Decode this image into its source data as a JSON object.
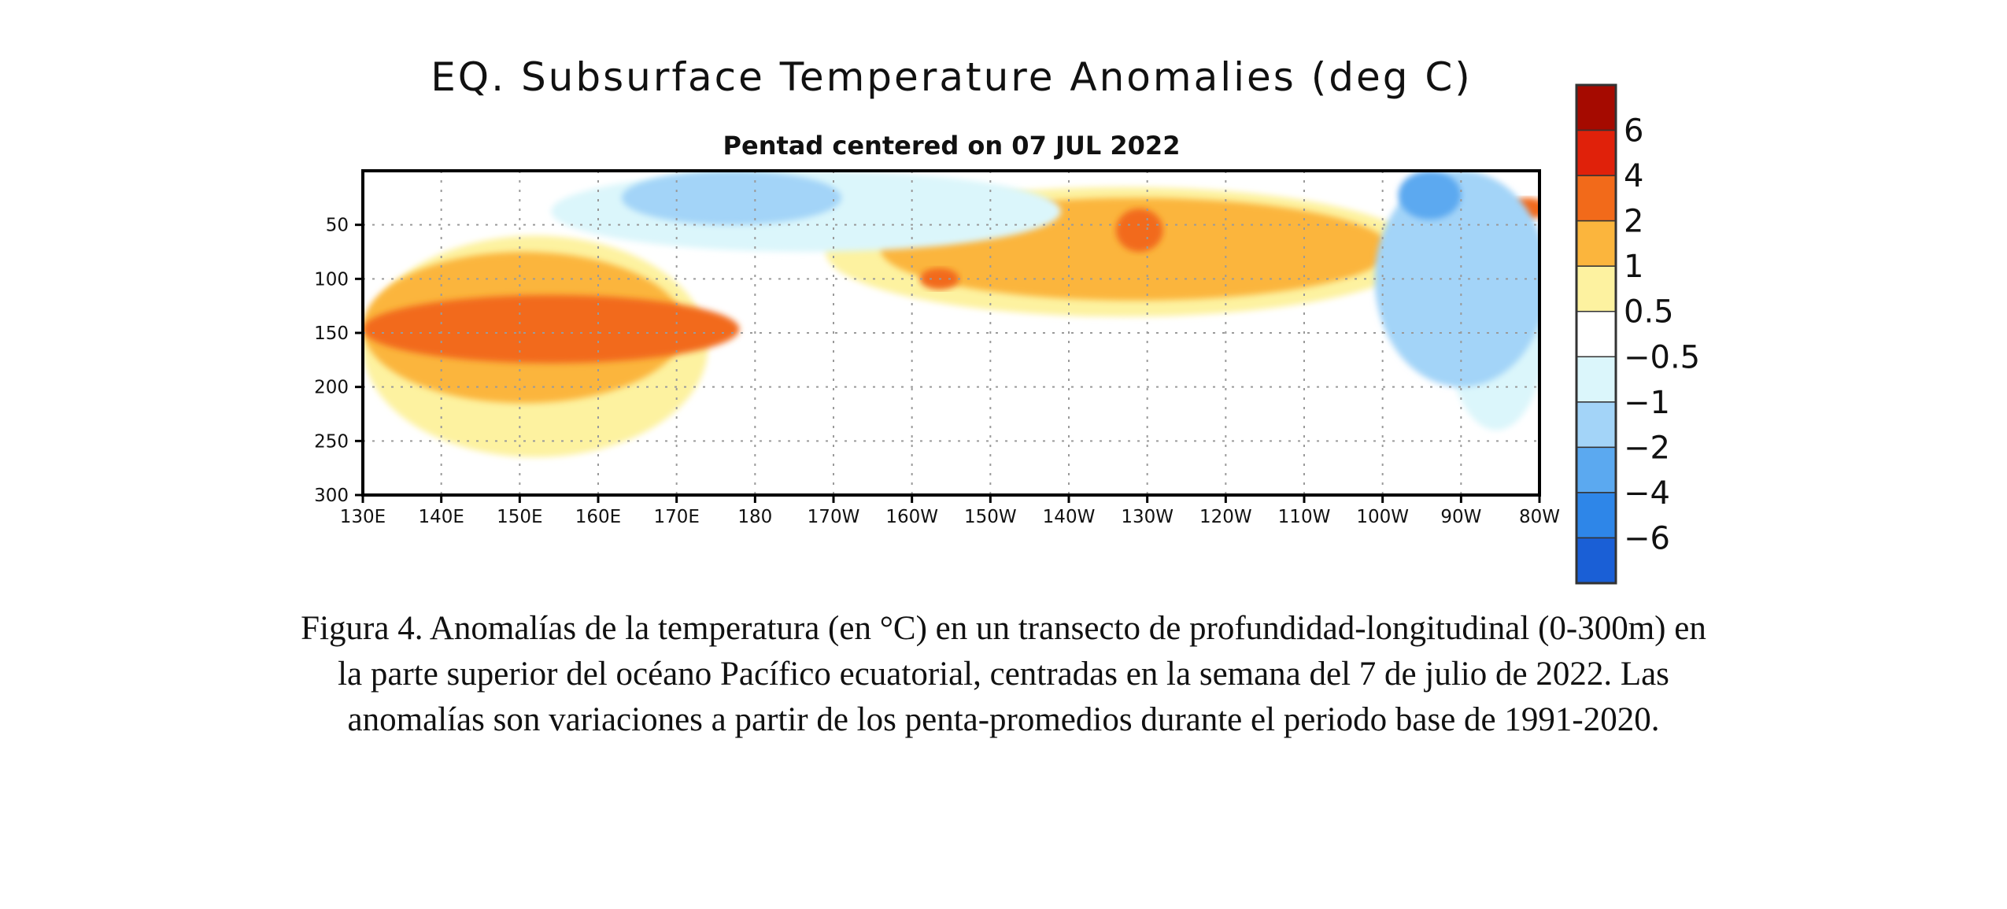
{
  "chart_data": {
    "type": "heatmap",
    "title": "EQ. Subsurface Temperature Anomalies (deg C)",
    "subtitle": "Pentad centered on 07 JUL 2022",
    "xlabel": "",
    "ylabel": "",
    "x_ticks": [
      "130E",
      "140E",
      "150E",
      "160E",
      "170E",
      "180",
      "170W",
      "160W",
      "150W",
      "140W",
      "130W",
      "120W",
      "110W",
      "100W",
      "90W",
      "80W"
    ],
    "x_range_lon": [
      130,
      280
    ],
    "y_ticks": [
      50,
      100,
      150,
      200,
      250,
      300
    ],
    "y_range_depth_m": [
      0,
      300
    ],
    "y_inverted": true,
    "grid": true,
    "legend_placement": "right",
    "colorbar": {
      "labels": [
        "6",
        "4",
        "2",
        "1",
        "0.5",
        "−0.5",
        "−1",
        "−2",
        "−4",
        "−6"
      ],
      "bins": [
        {
          "range": [
            6,
            8
          ],
          "color": "#a50a00"
        },
        {
          "range": [
            4,
            6
          ],
          "color": "#e0210a"
        },
        {
          "range": [
            2,
            4
          ],
          "color": "#f26a1a"
        },
        {
          "range": [
            1,
            2
          ],
          "color": "#fbb53d"
        },
        {
          "range": [
            0.5,
            1
          ],
          "color": "#fdf2a0"
        },
        {
          "range": [
            -0.5,
            0.5
          ],
          "color": "#ffffff"
        },
        {
          "range": [
            -1,
            -0.5
          ],
          "color": "#dbf6fb"
        },
        {
          "range": [
            -2,
            -1
          ],
          "color": "#a3d4f8"
        },
        {
          "range": [
            -4,
            -2
          ],
          "color": "#5ba9f0"
        },
        {
          "range": [
            -6,
            -4
          ],
          "color": "#2e86e8"
        },
        {
          "range": [
            -8,
            -6
          ],
          "color": "#1a5fd6"
        }
      ]
    },
    "anomaly_regions": [
      {
        "level": 0.5,
        "lon": [
          130,
          174
        ],
        "depth": [
          60,
          265
        ]
      },
      {
        "level": 1,
        "lon": [
          130,
          171
        ],
        "depth": [
          75,
          215
        ]
      },
      {
        "level": 2,
        "lon": [
          130,
          178
        ],
        "depth": [
          115,
          178
        ]
      },
      {
        "level": 0.5,
        "lon": [
          189,
          265
        ],
        "depth": [
          15,
          135
        ]
      },
      {
        "level": 1,
        "lon": [
          196,
          261
        ],
        "depth": [
          25,
          120
        ]
      },
      {
        "level": 2,
        "lon": [
          226,
          232
        ],
        "depth": [
          35,
          75
        ]
      },
      {
        "level": 2,
        "lon": [
          201,
          206
        ],
        "depth": [
          90,
          110
        ]
      },
      {
        "level": 2,
        "lon": [
          276,
          281
        ],
        "depth": [
          25,
          45
        ]
      },
      {
        "level": -0.5,
        "lon": [
          154,
          219
        ],
        "depth": [
          0,
          75
        ]
      },
      {
        "level": -1,
        "lon": [
          163,
          191
        ],
        "depth": [
          0,
          50
        ]
      },
      {
        "level": -0.5,
        "lon": [
          268,
          281
        ],
        "depth": [
          40,
          240
        ]
      },
      {
        "level": -1,
        "lon": [
          259,
          281
        ],
        "depth": [
          0,
          200
        ]
      },
      {
        "level": -2,
        "lon": [
          262,
          270
        ],
        "depth": [
          0,
          45
        ]
      }
    ]
  },
  "caption": {
    "line1": "Figura 4. Anomalías de la temperatura (en °C) en un transecto de profundidad-longitudinal (0-300m) en",
    "line2": "la parte superior del océano Pacífico ecuatorial, centradas en la semana del 7 de julio de 2022. Las",
    "line3": "anomalías son variaciones a partir de los penta-promedios durante el periodo base de 1991-2020."
  }
}
